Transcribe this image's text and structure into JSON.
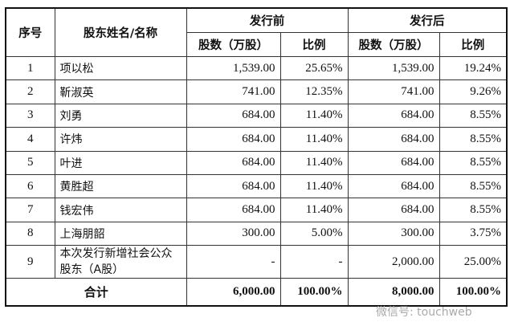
{
  "headers": {
    "seq": "序号",
    "name": "股东姓名/名称",
    "before": "发行前",
    "after": "发行后",
    "shares": "股数（万股）",
    "ratio": "比例"
  },
  "rows": [
    {
      "no": "1",
      "name": "项以松",
      "bs": "1,539.00",
      "br": "25.65%",
      "as": "1,539.00",
      "ar": "19.24%"
    },
    {
      "no": "2",
      "name": "靳淑英",
      "bs": "741.00",
      "br": "12.35%",
      "as": "741.00",
      "ar": "9.26%"
    },
    {
      "no": "3",
      "name": "刘勇",
      "bs": "684.00",
      "br": "11.40%",
      "as": "684.00",
      "ar": "8.55%"
    },
    {
      "no": "4",
      "name": "许炜",
      "bs": "684.00",
      "br": "11.40%",
      "as": "684.00",
      "ar": "8.55%"
    },
    {
      "no": "5",
      "name": "叶进",
      "bs": "684.00",
      "br": "11.40%",
      "as": "684.00",
      "ar": "8.55%"
    },
    {
      "no": "6",
      "name": "黄胜超",
      "bs": "684.00",
      "br": "11.40%",
      "as": "684.00",
      "ar": "8.55%"
    },
    {
      "no": "7",
      "name": "钱宏伟",
      "bs": "684.00",
      "br": "11.40%",
      "as": "684.00",
      "ar": "8.55%"
    },
    {
      "no": "8",
      "name": "上海朋韶",
      "bs": "300.00",
      "br": "5.00%",
      "as": "300.00",
      "ar": "3.75%"
    },
    {
      "no": "9",
      "name": "本次发行新增社会公众股东（A股）",
      "bs": "-",
      "br": "-",
      "as": "2,000.00",
      "ar": "25.00%"
    }
  ],
  "total": {
    "label": "合计",
    "bs": "6,000.00",
    "br": "100.00%",
    "as": "8,000.00",
    "ar": "100.00%"
  },
  "watermark": "微信号: touchweb"
}
